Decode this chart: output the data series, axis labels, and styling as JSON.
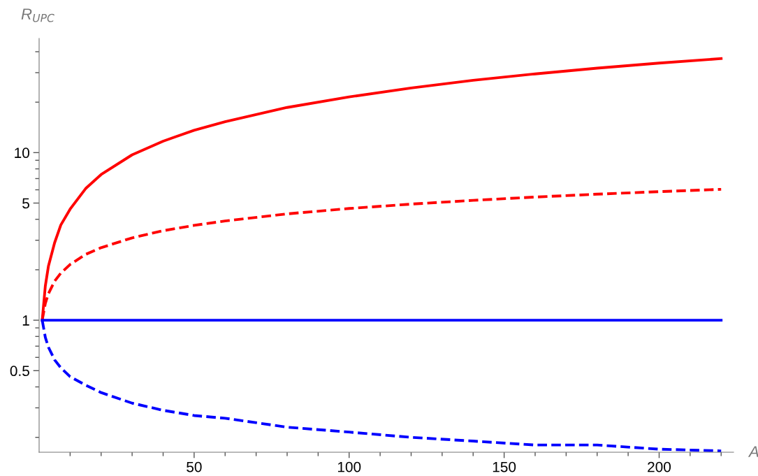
{
  "chart_data": {
    "type": "line",
    "xlabel": "A",
    "ylabel": "R$_{UPC}$",
    "log": "y",
    "grid": false,
    "legend": false,
    "xlim": [
      0,
      224
    ],
    "ylim": [
      0.163,
      48
    ],
    "xticks": [
      {
        "value": 10,
        "label": null
      },
      {
        "value": 20,
        "label": null
      },
      {
        "value": 30,
        "label": null
      },
      {
        "value": 40,
        "label": null
      },
      50,
      {
        "value": 60,
        "label": null
      },
      {
        "value": 70,
        "label": null
      },
      {
        "value": 80,
        "label": null
      },
      {
        "value": 90,
        "label": null
      },
      100,
      {
        "value": 110,
        "label": null
      },
      {
        "value": 120,
        "label": null
      },
      {
        "value": 130,
        "label": null
      },
      {
        "value": 140,
        "label": null
      },
      150,
      {
        "value": 160,
        "label": null
      },
      {
        "value": 170,
        "label": null
      },
      {
        "value": 180,
        "label": null
      },
      {
        "value": 190,
        "label": null
      },
      200,
      {
        "value": 210,
        "label": null
      },
      {
        "value": 220,
        "label": null
      }
    ],
    "yticks": [
      {
        "value": 0.2,
        "label": null
      },
      {
        "value": 0.3,
        "label": null
      },
      {
        "value": 0.4,
        "label": null
      },
      0.5,
      {
        "value": 0.6,
        "label": null
      },
      {
        "value": 0.7,
        "label": null
      },
      {
        "value": 0.8,
        "label": null
      },
      {
        "value": 0.9,
        "label": null
      },
      1,
      {
        "value": 2,
        "label": null
      },
      {
        "value": 3,
        "label": null
      },
      {
        "value": 4,
        "label": null
      },
      5,
      {
        "value": 6,
        "label": null
      },
      {
        "value": 7,
        "label": null
      },
      {
        "value": 8,
        "label": null
      },
      {
        "value": 9,
        "label": null
      },
      10,
      {
        "value": 20,
        "label": null
      },
      {
        "value": 30,
        "label": null
      },
      {
        "value": 40,
        "label": null
      }
    ],
    "x": [
      1,
      2,
      3,
      5,
      7,
      10,
      15,
      20,
      30,
      40,
      50,
      60,
      80,
      100,
      120,
      140,
      160,
      180,
      200,
      220
    ],
    "series": [
      {
        "color": "#ff0000",
        "line_style": "solid",
        "values": [
          1,
          1.6,
          2.1,
          2.9,
          3.7,
          4.6,
          6.1,
          7.4,
          9.7,
          11.7,
          13.6,
          15.3,
          18.6,
          21.5,
          24.3,
          27,
          29.5,
          31.9,
          34.2,
          36.4
        ]
      },
      {
        "color": "#ff0000",
        "line_style": "dashed",
        "values": [
          1,
          1.26,
          1.44,
          1.71,
          1.91,
          2.15,
          2.47,
          2.71,
          3.1,
          3.42,
          3.68,
          3.91,
          4.31,
          4.64,
          4.93,
          5.19,
          5.43,
          5.65,
          5.85,
          6.04
        ]
      },
      {
        "color": "#0000ff",
        "line_style": "solid",
        "values": [
          1,
          1,
          1,
          1,
          1,
          1,
          1,
          1,
          1,
          1,
          1,
          1,
          1,
          1,
          1,
          1,
          1,
          1,
          1,
          1
        ]
      },
      {
        "color": "#0000ff",
        "line_style": "dashed",
        "values": [
          1,
          0.79,
          0.69,
          0.58,
          0.52,
          0.46,
          0.41,
          0.37,
          0.32,
          0.29,
          0.27,
          0.26,
          0.23,
          0.215,
          0.2,
          0.19,
          0.18,
          0.18,
          0.17,
          0.166
        ]
      }
    ]
  }
}
